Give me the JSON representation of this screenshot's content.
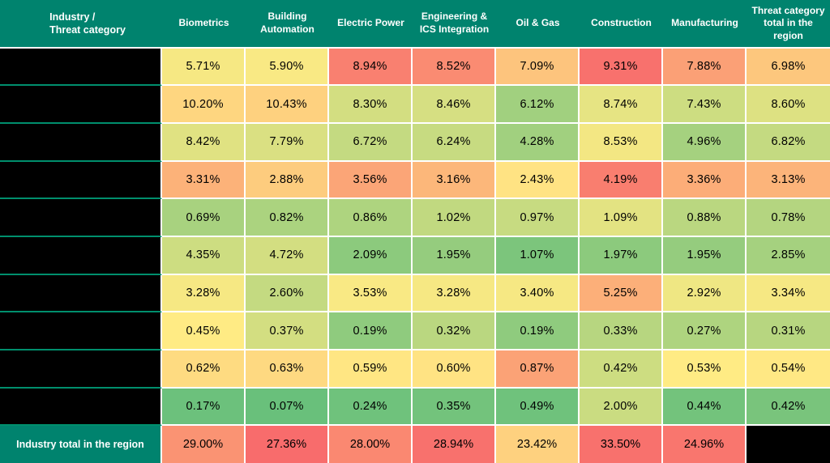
{
  "colors": {
    "header_teal": "#00836E",
    "row_separator_teal": "#008F6D",
    "redaction_black": "#000000",
    "grid_white": "#FFFFFF",
    "text_dark": "#000000",
    "header_text": "#FFFFFF"
  },
  "chart_data": {
    "type": "heatmap",
    "unit": "%",
    "corner_label": "Industry /\nThreat category",
    "columns": [
      "Biometrics",
      "Building Automation",
      "Electric Power",
      "Engineering & ICS Integration",
      "Oil & Gas",
      "Construction",
      "Manufacturing",
      "Threat category total in the region"
    ],
    "row_labels_redacted": true,
    "rows": [
      {
        "label": "",
        "redacted": true,
        "values": [
          5.71,
          5.9,
          8.94,
          8.52,
          7.09,
          9.31,
          7.88,
          6.98
        ],
        "tones": [
          0.47,
          0.48,
          0.91,
          0.87,
          0.65,
          0.97,
          0.79,
          0.64
        ]
      },
      {
        "label": "",
        "redacted": true,
        "values": [
          10.2,
          10.43,
          8.3,
          8.46,
          6.12,
          8.74,
          7.43,
          8.6
        ],
        "tones": [
          0.58,
          0.6,
          0.36,
          0.37,
          0.2,
          0.42,
          0.34,
          0.39
        ]
      },
      {
        "label": "",
        "redacted": true,
        "values": [
          8.42,
          7.79,
          6.72,
          6.24,
          4.28,
          8.53,
          4.96,
          6.82
        ],
        "tones": [
          0.4,
          0.38,
          0.31,
          0.32,
          0.2,
          0.46,
          0.21,
          0.31
        ]
      },
      {
        "label": "",
        "redacted": true,
        "values": [
          3.31,
          2.88,
          3.56,
          3.16,
          2.43,
          4.19,
          3.36,
          3.13
        ],
        "tones": [
          0.72,
          0.62,
          0.77,
          0.7,
          0.53,
          0.92,
          0.74,
          0.71
        ]
      },
      {
        "label": "",
        "redacted": true,
        "values": [
          0.69,
          0.82,
          0.86,
          1.02,
          0.97,
          1.09,
          0.88,
          0.78
        ],
        "tones": [
          0.22,
          0.23,
          0.24,
          0.3,
          0.32,
          0.41,
          0.28,
          0.26
        ]
      },
      {
        "label": "",
        "redacted": true,
        "values": [
          4.35,
          4.72,
          2.09,
          1.95,
          1.07,
          1.97,
          1.95,
          2.85
        ],
        "tones": [
          0.34,
          0.36,
          0.13,
          0.16,
          0.08,
          0.13,
          0.16,
          0.21
        ]
      },
      {
        "label": "",
        "redacted": true,
        "values": [
          3.28,
          2.6,
          3.53,
          3.28,
          3.4,
          5.25,
          2.92,
          3.34
        ],
        "tones": [
          0.47,
          0.31,
          0.48,
          0.47,
          0.47,
          0.73,
          0.45,
          0.47
        ]
      },
      {
        "label": "",
        "redacted": true,
        "values": [
          0.45,
          0.37,
          0.19,
          0.32,
          0.19,
          0.33,
          0.27,
          0.31
        ],
        "tones": [
          0.5,
          0.36,
          0.14,
          0.28,
          0.14,
          0.27,
          0.24,
          0.27
        ]
      },
      {
        "label": "",
        "redacted": true,
        "values": [
          0.62,
          0.63,
          0.59,
          0.6,
          0.87,
          0.42,
          0.53,
          0.54
        ],
        "tones": [
          0.56,
          0.57,
          0.52,
          0.53,
          0.78,
          0.34,
          0.5,
          0.51
        ]
      },
      {
        "label": "",
        "redacted": true,
        "values": [
          0.17,
          0.07,
          0.24,
          0.35,
          0.49,
          2.0,
          0.44,
          0.42
        ],
        "tones": [
          0.03,
          0.02,
          0.04,
          0.05,
          0.04,
          0.33,
          0.05,
          0.07
        ]
      }
    ],
    "totals_row": {
      "label": "Industry total in the region",
      "values": [
        29.0,
        27.36,
        28.0,
        28.94,
        23.42,
        33.5,
        24.96
      ],
      "tones": [
        0.84,
        0.99,
        0.88,
        0.97,
        0.6,
        0.97,
        0.95
      ],
      "last_cell_redacted": true
    },
    "color_scale": {
      "low": "#63BE7B",
      "mid": "#FFEB84",
      "high": "#F8696B"
    },
    "legend": "none",
    "grid": "white 2px cell separators; teal separators between redacted label cells"
  }
}
